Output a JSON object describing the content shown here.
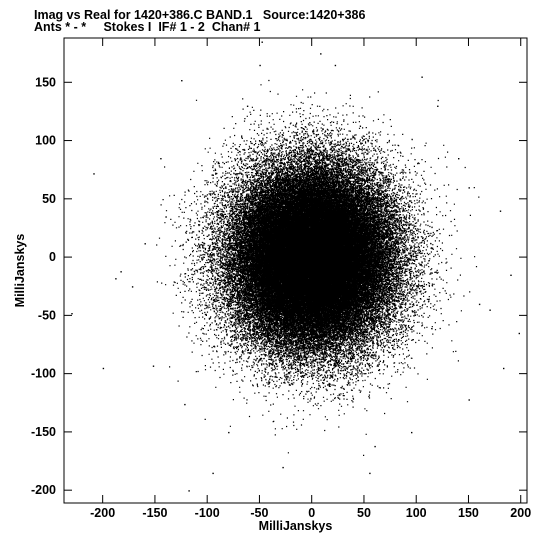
{
  "header": {
    "line1": "Imag vs Real for 1420+386.C BAND.1   Source:1420+386",
    "line2": "Ants * - *     Stokes I  IF# 1 - 2  Chan# 1"
  },
  "chart_data": {
    "type": "scatter",
    "title": "Imag vs Real for 1420+386.C BAND.1   Source:1420+386",
    "subtitle": "Ants * - *     Stokes I  IF# 1 - 2  Chan# 1",
    "xlabel": "MilliJanskys",
    "ylabel": "MilliJanskys",
    "xlim": [
      -237,
      206
    ],
    "ylim": [
      -211,
      188
    ],
    "x_ticks": [
      -200,
      -150,
      -100,
      -50,
      0,
      50,
      100,
      150,
      200
    ],
    "y_ticks": [
      -200,
      -150,
      -100,
      -50,
      0,
      50,
      100,
      150
    ],
    "grid": false,
    "legend": "none",
    "marker_color": "#000000",
    "distribution": {
      "type": "gaussian-cloud",
      "center": [
        0,
        0
      ],
      "sigma": 38,
      "approx_points": 90000
    },
    "outliers": [
      [
        -209,
        72
      ],
      [
        -188,
        -18
      ],
      [
        -183,
        -12
      ],
      [
        -172,
        -25
      ],
      [
        -160,
        12
      ],
      [
        -152,
        -93
      ],
      [
        -145,
        85
      ],
      [
        -140,
        35
      ],
      [
        -125,
        152
      ],
      [
        -122,
        -126
      ],
      [
        -118,
        -200
      ],
      [
        -95,
        -185
      ],
      [
        -62,
        130
      ],
      [
        -50,
        165
      ],
      [
        -48,
        185
      ],
      [
        -28,
        -180
      ],
      [
        8,
        175
      ],
      [
        22,
        165
      ],
      [
        55,
        -185
      ],
      [
        60,
        -162
      ],
      [
        105,
        155
      ],
      [
        120,
        130
      ],
      [
        140,
        85
      ],
      [
        150,
        60
      ],
      [
        160,
        -40
      ],
      [
        170,
        -45
      ],
      [
        180,
        40
      ],
      [
        183,
        -95
      ],
      [
        190,
        -15
      ],
      [
        198,
        -65
      ],
      [
        150,
        -122
      ],
      [
        -230,
        -48
      ],
      [
        -200,
        -95
      ],
      [
        95,
        -150
      ],
      [
        -80,
        -150
      ]
    ]
  }
}
